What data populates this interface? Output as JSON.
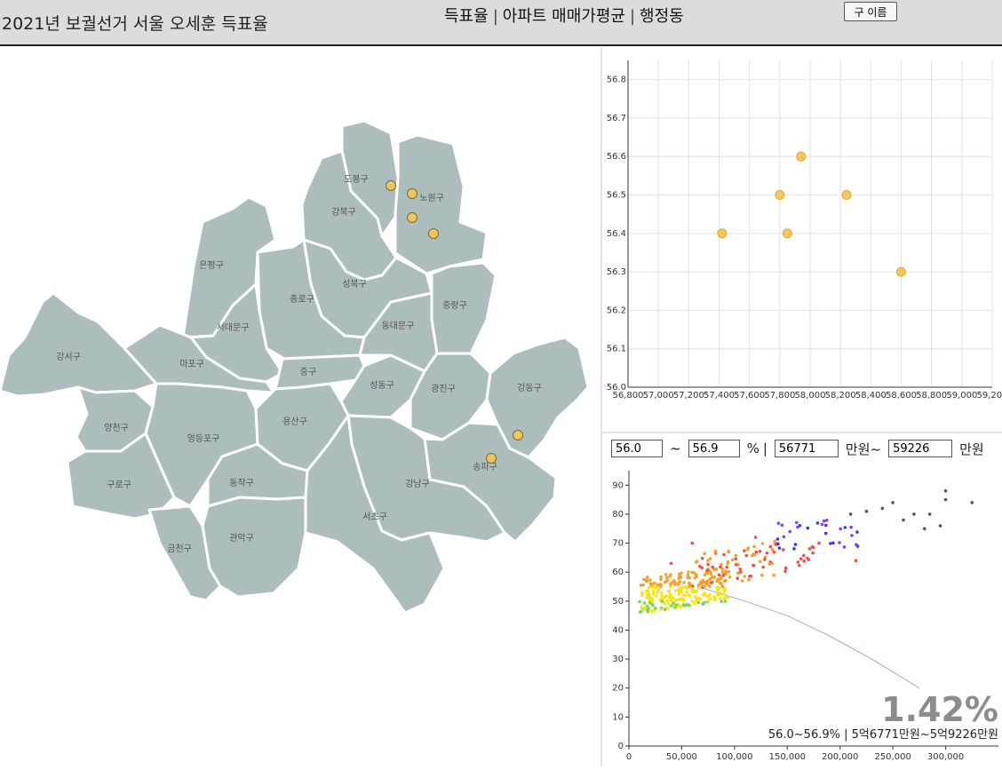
{
  "header": {
    "title": "2021년 보궐선거 서울 오세훈 득표율",
    "nav": [
      "득표율",
      "아파트 매매가평균",
      "행정동"
    ],
    "nav_separator": "|",
    "name_button": "구 이름"
  },
  "map": {
    "fill_color": "#adbcbd",
    "border_color": "#ffffff",
    "marker_color": "#f2c45c",
    "districts": [
      {
        "name": "도봉구"
      },
      {
        "name": "노원구"
      },
      {
        "name": "강북구"
      },
      {
        "name": "은평구"
      },
      {
        "name": "성북구"
      },
      {
        "name": "종로구"
      },
      {
        "name": "중랑구"
      },
      {
        "name": "서대문구"
      },
      {
        "name": "동대문구"
      },
      {
        "name": "강서구"
      },
      {
        "name": "마포구"
      },
      {
        "name": "중구"
      },
      {
        "name": "성동구"
      },
      {
        "name": "광진구"
      },
      {
        "name": "강동구"
      },
      {
        "name": "양천구"
      },
      {
        "name": "영등포구"
      },
      {
        "name": "용산구"
      },
      {
        "name": "송파구"
      },
      {
        "name": "구로구"
      },
      {
        "name": "동작구"
      },
      {
        "name": "강남구"
      },
      {
        "name": "서초구"
      },
      {
        "name": "금천구"
      },
      {
        "name": "관악구"
      }
    ],
    "markers_note_values": "districts with markers",
    "marker_districts": [
      "도봉구",
      "노원구",
      "노원구",
      "노원구",
      "강동구",
      "송파구"
    ]
  },
  "chart_data": [
    {
      "type": "scatter",
      "x_ticks": [
        "56,800",
        "57,000",
        "57,200",
        "57,400",
        "57,600",
        "57,800",
        "58,000",
        "58,200",
        "58,400",
        "58,600",
        "58,800",
        "59,000",
        "59,200"
      ],
      "y_ticks": [
        "56.0",
        "56.1",
        "56.2",
        "56.3",
        "56.4",
        "56.5",
        "56.6",
        "56.7",
        "56.8"
      ],
      "xlim": [
        56800,
        59200
      ],
      "ylim": [
        56.0,
        56.85
      ],
      "grid": true,
      "point_color": "#f8c65a",
      "points": [
        {
          "x": 57420,
          "y": 56.4
        },
        {
          "x": 57800,
          "y": 56.5
        },
        {
          "x": 57850,
          "y": 56.4
        },
        {
          "x": 57940,
          "y": 56.6
        },
        {
          "x": 58240,
          "y": 56.5
        },
        {
          "x": 58600,
          "y": 56.3
        }
      ]
    },
    {
      "type": "scatter",
      "x_ticks": [
        "0",
        "50,000",
        "100,000",
        "150,000",
        "200,000",
        "250,000",
        "300,000"
      ],
      "y_ticks": [
        "0",
        "10",
        "20",
        "30",
        "40",
        "50",
        "60",
        "70",
        "80",
        "90"
      ],
      "xlim": [
        0,
        350000
      ],
      "ylim": [
        0,
        95
      ],
      "colors": {
        "green": "#7ad84a",
        "yellow": "#f5e60f",
        "orange": "#f6a02a",
        "red": "#f25050",
        "purple": "#8a3cf2",
        "blue": "#3a3af0",
        "dark": "#555555"
      },
      "curve_color": "#9ab0cc",
      "points_summary": "dense cluster at 20,000-100,000 / 45-60, rising to 80-90 at 300,000"
    }
  ],
  "filter": {
    "min_pct": "56.0",
    "max_pct": "56.9",
    "pct_unit": "%",
    "sep": "|",
    "min_price": "56771",
    "price_unit_tilde": "만원~",
    "max_price": "59226",
    "price_unit": "만원",
    "tilde": "~"
  },
  "result": {
    "percent": "1.42%",
    "description": "56.0~56.9% | 5억6771만원~5억9226만원"
  }
}
